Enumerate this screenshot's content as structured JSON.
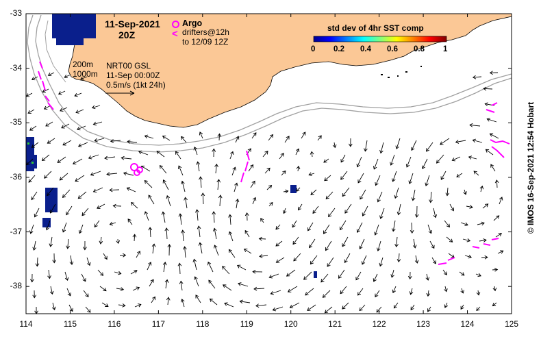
{
  "title": {
    "date": "11-Sep-2021",
    "time": "20Z"
  },
  "legend": {
    "argo_label": "Argo",
    "drifters_line1": "drifters@12h",
    "drifters_line2": "to 12/09 12Z",
    "colorbar_title": "std dev of 4hr SST comp",
    "colorbar_ticks": [
      "0",
      "0.2",
      "0.4",
      "0.6",
      "0.8",
      "1"
    ],
    "colorbar_range": [
      0,
      1
    ],
    "drifter_color": "#ff00ff"
  },
  "info": {
    "contour_200": "200m",
    "contour_1000": "1000m",
    "product": "NRT00 GSL",
    "analysis_time": "11-Sep 00:00Z",
    "scale_label": "0.5m/s (1kt 24h)"
  },
  "axes": {
    "lon_ticks": [
      "114",
      "115",
      "116",
      "117",
      "118",
      "119",
      "120",
      "121",
      "122",
      "123",
      "124",
      "125"
    ],
    "lon_range": [
      114,
      125
    ],
    "lat_ticks": [
      "-33",
      "-34",
      "-35",
      "-36",
      "-37",
      "-38"
    ],
    "lat_range": [
      -38.5,
      -33
    ]
  },
  "credit": "© IMOS 16-Sep-2021 12:54 Hobart",
  "colors": {
    "land": "#fbc896",
    "ocean": "#ffffff",
    "arrows": "#000000",
    "isobaths": "#a0a0a0",
    "sst_high_var": "#0a1f8c"
  }
}
